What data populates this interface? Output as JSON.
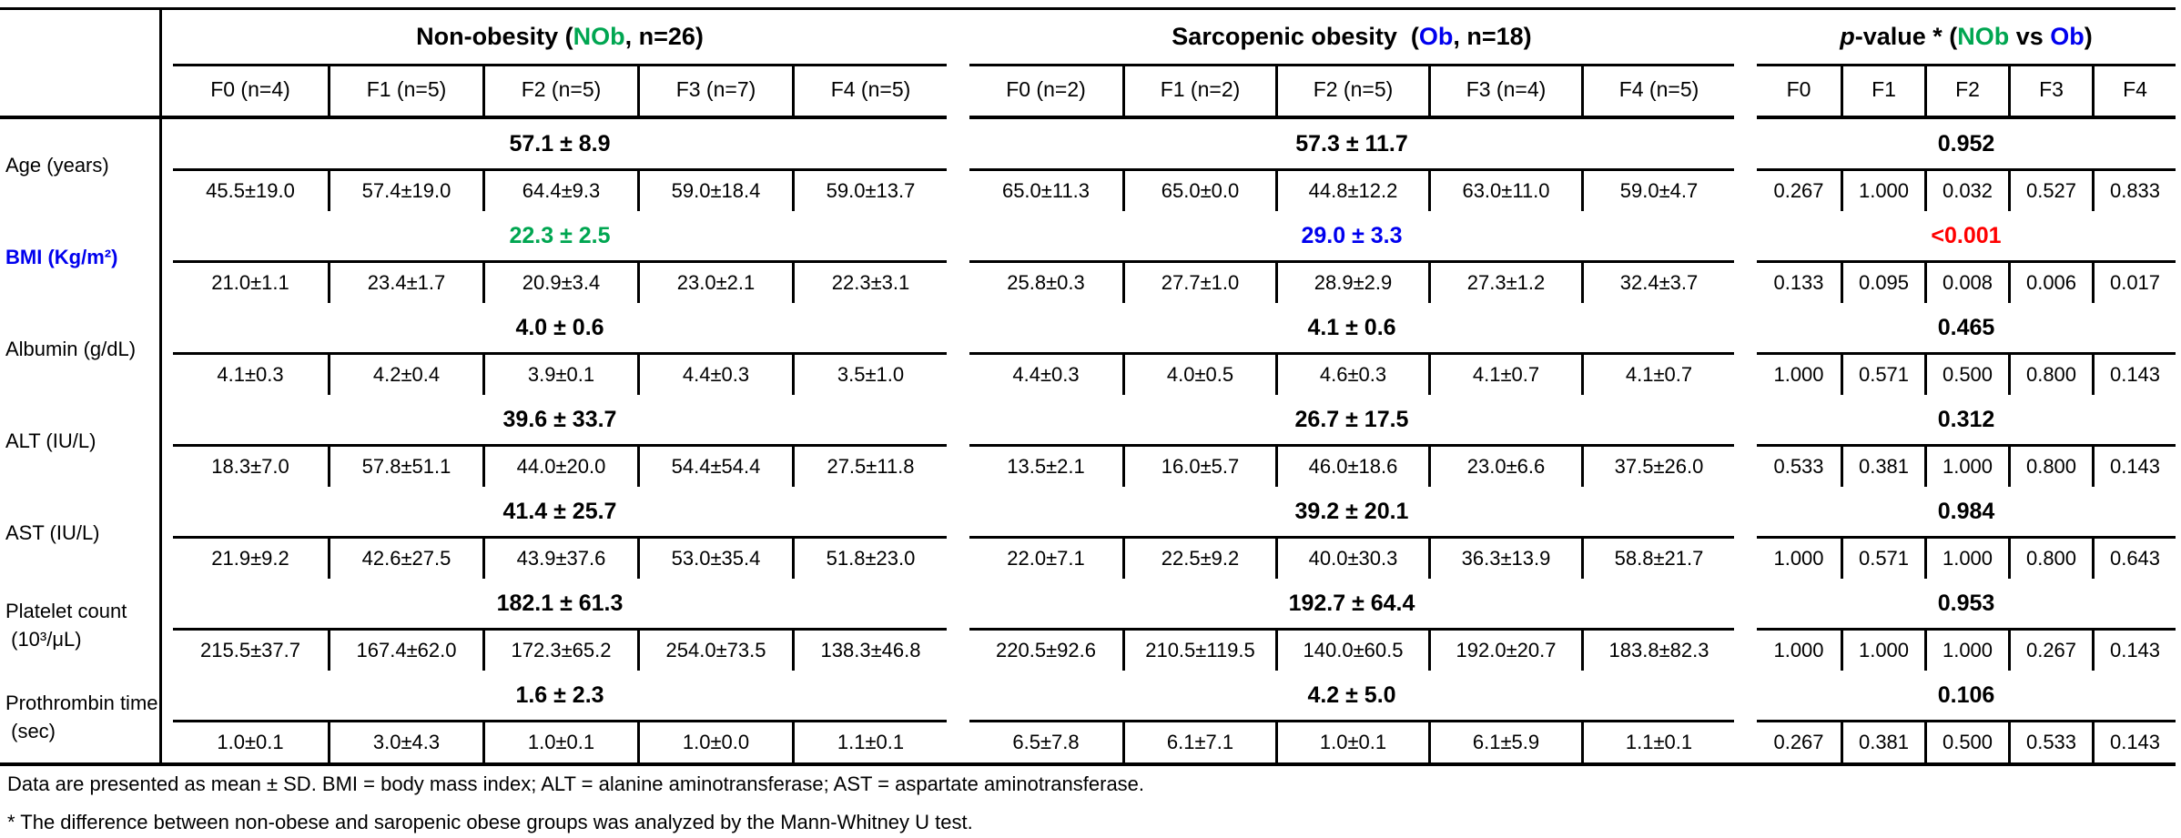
{
  "colors": {
    "green": "#00A651",
    "blue": "#0000EE",
    "red": "#FF0000",
    "text": "#000000"
  },
  "groups": [
    {
      "id": "nob",
      "title_segments": [
        {
          "t": "Non-obesity ("
        },
        {
          "t": "NOb",
          "c": "green"
        },
        {
          "t": ", n=26)"
        }
      ],
      "columns": [
        "F0 (n=4)",
        "F1 (n=5)",
        "F2 (n=5)",
        "F3 (n=7)",
        "F4 (n=5)"
      ]
    },
    {
      "id": "ob",
      "title_segments": [
        {
          "t": "Sarcopenic obesity  ("
        },
        {
          "t": "Ob",
          "c": "blue"
        },
        {
          "t": ", n=18)"
        }
      ],
      "columns": [
        "F0 (n=2)",
        "F1 (n=2)",
        "F2 (n=5)",
        "F3 (n=4)",
        "F4 (n=5)"
      ]
    },
    {
      "id": "pvalue",
      "title_segments": [
        {
          "t": "p",
          "i": true
        },
        {
          "t": "-value * ("
        },
        {
          "t": "NOb",
          "c": "green"
        },
        {
          "t": " vs "
        },
        {
          "t": "Ob",
          "c": "blue"
        },
        {
          "t": ")"
        }
      ],
      "columns": [
        "F0",
        "F1",
        "F2",
        "F3",
        "F4"
      ]
    }
  ],
  "rows": [
    {
      "label_lines": [
        "Age (years)"
      ],
      "groups": [
        {
          "overall": "57.1 ± 8.9",
          "cells": [
            "45.5±19.0",
            "57.4±19.0",
            "64.4±9.3",
            "59.0±18.4",
            "59.0±13.7"
          ]
        },
        {
          "overall": "57.3 ± 11.7",
          "cells": [
            "65.0±11.3",
            "65.0±0.0",
            "44.8±12.2",
            "63.0±11.0",
            "59.0±4.7"
          ]
        },
        {
          "overall": "0.952",
          "cells": [
            "0.267",
            "1.000",
            "0.032",
            "0.527",
            "0.833"
          ]
        }
      ]
    },
    {
      "label_lines": [
        "BMI (Kg/m²)"
      ],
      "label_color": "blue",
      "label_bold": true,
      "groups": [
        {
          "overall": "22.3 ± 2.5",
          "overall_color": "green",
          "cells": [
            "21.0±1.1",
            "23.4±1.7",
            "20.9±3.4",
            "23.0±2.1",
            "22.3±3.1"
          ]
        },
        {
          "overall": "29.0 ± 3.3",
          "overall_color": "blue",
          "cells": [
            "25.8±0.3",
            "27.7±1.0",
            "28.9±2.9",
            "27.3±1.2",
            "32.4±3.7"
          ]
        },
        {
          "overall": "<0.001",
          "overall_color": "red",
          "cells": [
            "0.133",
            "0.095",
            "0.008",
            "0.006",
            "0.017"
          ]
        }
      ]
    },
    {
      "label_lines": [
        "Albumin (g/dL)"
      ],
      "groups": [
        {
          "overall": "4.0 ± 0.6",
          "cells": [
            "4.1±0.3",
            "4.2±0.4",
            "3.9±0.1",
            "4.4±0.3",
            "3.5±1.0"
          ]
        },
        {
          "overall": "4.1 ± 0.6",
          "cells": [
            "4.4±0.3",
            "4.0±0.5",
            "4.6±0.3",
            "4.1±0.7",
            "4.1±0.7"
          ]
        },
        {
          "overall": "0.465",
          "cells": [
            "1.000",
            "0.571",
            "0.500",
            "0.800",
            "0.143"
          ]
        }
      ]
    },
    {
      "label_lines": [
        "ALT (IU/L)"
      ],
      "groups": [
        {
          "overall": "39.6 ± 33.7",
          "cells": [
            "18.3±7.0",
            "57.8±51.1",
            "44.0±20.0",
            "54.4±54.4",
            "27.5±11.8"
          ]
        },
        {
          "overall": "26.7 ± 17.5",
          "cells": [
            "13.5±2.1",
            "16.0±5.7",
            "46.0±18.6",
            "23.0±6.6",
            "37.5±26.0"
          ]
        },
        {
          "overall": "0.312",
          "cells": [
            "0.533",
            "0.381",
            "1.000",
            "0.800",
            "0.143"
          ]
        }
      ]
    },
    {
      "label_lines": [
        "AST (IU/L)"
      ],
      "groups": [
        {
          "overall": "41.4 ± 25.7",
          "cells": [
            "21.9±9.2",
            "42.6±27.5",
            "43.9±37.6",
            "53.0±35.4",
            "51.8±23.0"
          ]
        },
        {
          "overall": "39.2 ± 20.1",
          "cells": [
            "22.0±7.1",
            "22.5±9.2",
            "40.0±30.3",
            "36.3±13.9",
            "58.8±21.7"
          ]
        },
        {
          "overall": "0.984",
          "cells": [
            "1.000",
            "0.571",
            "1.000",
            "0.800",
            "0.643"
          ]
        }
      ]
    },
    {
      "label_lines": [
        "Platelet count",
        " (10³/μL)"
      ],
      "groups": [
        {
          "overall": "182.1 ± 61.3",
          "cells": [
            "215.5±37.7",
            "167.4±62.0",
            "172.3±65.2",
            "254.0±73.5",
            "138.3±46.8"
          ]
        },
        {
          "overall": "192.7 ± 64.4",
          "cells": [
            "220.5±92.6",
            "210.5±119.5",
            "140.0±60.5",
            "192.0±20.7",
            "183.8±82.3"
          ]
        },
        {
          "overall": "0.953",
          "cells": [
            "1.000",
            "1.000",
            "1.000",
            "0.267",
            "0.143"
          ]
        }
      ]
    },
    {
      "label_lines": [
        "Prothrombin time",
        " (sec)"
      ],
      "groups": [
        {
          "overall": "1.6 ± 2.3",
          "cells": [
            "1.0±0.1",
            "3.0±4.3",
            "1.0±0.1",
            "1.0±0.0",
            "1.1±0.1"
          ]
        },
        {
          "overall": "4.2 ± 5.0",
          "cells": [
            "6.5±7.8",
            "6.1±7.1",
            "1.0±0.1",
            "6.1±5.9",
            "1.1±0.1"
          ]
        },
        {
          "overall": "0.106",
          "cells": [
            "0.267",
            "0.381",
            "0.500",
            "0.533",
            "0.143"
          ]
        }
      ]
    }
  ],
  "footnotes": [
    "Data are presented as mean ± SD. BMI = body mass index; ALT = alanine aminotransferase; AST = aspartate aminotransferase.",
    "* The difference between non-obese and saropenic obese groups was analyzed by the Mann-Whitney U test."
  ]
}
